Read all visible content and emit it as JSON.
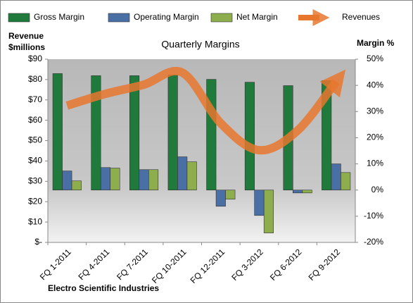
{
  "chart_data": {
    "type": "bar",
    "title": "Quarterly Margins",
    "y_label": [
      "Revenue",
      "$millions"
    ],
    "y2_label": "Margin %",
    "footer": "Electro Scientific Industries",
    "categories": [
      "FQ 1-2011",
      "FQ 4-2011",
      "FQ 7-2011",
      "FQ 10-2011",
      "FQ 12-2011",
      "FQ 3-2012",
      "FQ 6-2012",
      "FQ 9-2012"
    ],
    "series": [
      {
        "name": "Gross Margin",
        "color": "#1f7a3c",
        "axis": "y2",
        "values": [
          44.5,
          43.7,
          43.7,
          44,
          42.3,
          41.2,
          39.9,
          41.8
        ]
      },
      {
        "name": "Operating Margin",
        "color": "#4a6fa5",
        "axis": "y2",
        "values": [
          7.3,
          8.6,
          7.8,
          12.7,
          -6.2,
          -9.7,
          -1.1,
          10
        ]
      },
      {
        "name": "Net Margin",
        "color": "#8eae4e",
        "axis": "y2",
        "values": [
          3.5,
          8.4,
          7.8,
          10.8,
          -3.5,
          -16.4,
          -1.1,
          6.7
        ]
      },
      {
        "name": "Revenues",
        "color": "#e8772e",
        "type": "line",
        "axis": "y",
        "values": [
          67.2,
          73,
          77.5,
          83.4,
          58.5,
          45.3,
          55,
          79
        ]
      }
    ],
    "ylim": [
      0,
      90
    ],
    "yticks": [
      {
        "value": 0,
        "label": "$-"
      },
      {
        "value": 10,
        "label": "$10"
      },
      {
        "value": 20,
        "label": "$20"
      },
      {
        "value": 30,
        "label": "$30"
      },
      {
        "value": 40,
        "label": "$40"
      },
      {
        "value": 50,
        "label": "$50"
      },
      {
        "value": 60,
        "label": "$60"
      },
      {
        "value": 70,
        "label": "$70"
      },
      {
        "value": 80,
        "label": "$80"
      },
      {
        "value": 90,
        "label": "$90"
      }
    ],
    "y2lim": [
      -20,
      50
    ],
    "y2ticks": [
      {
        "value": -20,
        "label": "-20%"
      },
      {
        "value": -10,
        "label": "-10%"
      },
      {
        "value": 0,
        "label": "0%"
      },
      {
        "value": 10,
        "label": "10%"
      },
      {
        "value": 20,
        "label": "20%"
      },
      {
        "value": 30,
        "label": "30%"
      },
      {
        "value": 40,
        "label": "40%"
      },
      {
        "value": 50,
        "label": "50%"
      }
    ]
  }
}
